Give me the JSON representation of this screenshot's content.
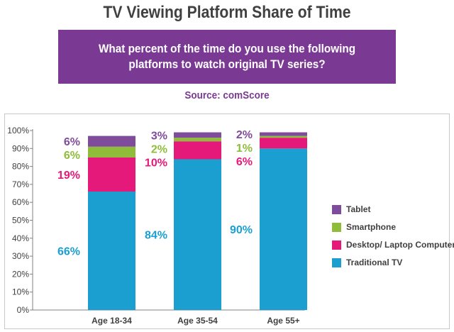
{
  "title": "TV Viewing Platform Share of Time",
  "question": "What percent of the time do you use the following platforms to watch original TV series?",
  "source": "Source: comScore",
  "chart_data": {
    "type": "bar",
    "stacked": true,
    "categories": [
      "Age 18-34",
      "Age 35-54",
      "Age 55+"
    ],
    "series": [
      {
        "name": "Traditional TV",
        "color": "#1a9fd0",
        "values": [
          66,
          84,
          90
        ],
        "labels": [
          "66%",
          "84%",
          "90%"
        ]
      },
      {
        "name": "Desktop/ Laptop Computer",
        "color": "#e5197a",
        "values": [
          19,
          10,
          6
        ],
        "labels": [
          "19%",
          "10%",
          "6%"
        ]
      },
      {
        "name": "Smartphone",
        "color": "#8fbd3a",
        "values": [
          6,
          2,
          1
        ],
        "labels": [
          "6%",
          "2%",
          "1%"
        ]
      },
      {
        "name": "Tablet",
        "color": "#7f4c9b",
        "values": [
          6,
          3,
          2
        ],
        "labels": [
          "6%",
          "3%",
          "2%"
        ]
      }
    ],
    "ylim": [
      0,
      100
    ],
    "yticks": [
      "0%",
      "10%",
      "20%",
      "30%",
      "40%",
      "50%",
      "60%",
      "70%",
      "80%",
      "90%",
      "100%"
    ],
    "legend_order": [
      "Tablet",
      "Smartphone",
      "Desktop/ Laptop Computer",
      "Traditional TV"
    ],
    "legend_position": "right",
    "grid": false
  }
}
